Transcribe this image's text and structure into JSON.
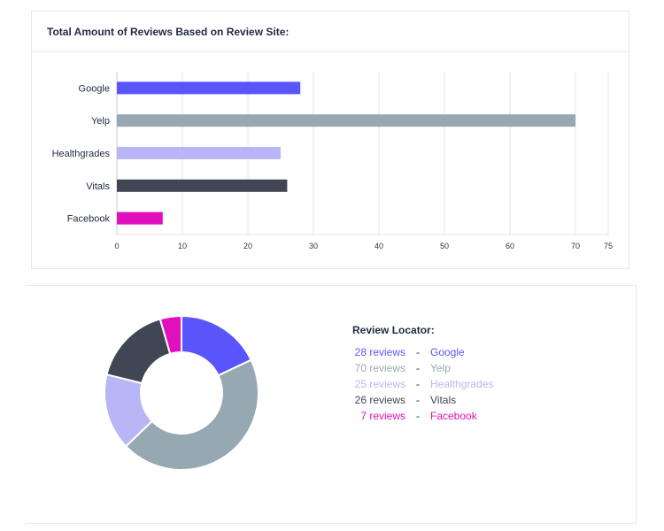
{
  "bar_card": {
    "title": "Total Amount of Reviews Based on Review Site:"
  },
  "legend": {
    "title": "Review  Locator:",
    "dash": "-",
    "items": [
      {
        "count_text": "28 reviews",
        "site": "Google",
        "color": "#5a55fb"
      },
      {
        "count_text": "70 reviews",
        "site": "Yelp",
        "color": "#96a9b2"
      },
      {
        "count_text": "25 reviews",
        "site": "Healthgrades",
        "color": "#b9b6f7"
      },
      {
        "count_text": "26 reviews",
        "site": "Vitals",
        "color": "#414654"
      },
      {
        "count_text": "7 reviews",
        "site": "Facebook",
        "color": "#e010be"
      }
    ]
  },
  "chart_data": [
    {
      "type": "bar",
      "orientation": "horizontal",
      "title": "Total Amount of Reviews Based on Review Site:",
      "categories": [
        "Google",
        "Yelp",
        "Healthgrades",
        "Vitals",
        "Facebook"
      ],
      "values": [
        28,
        70,
        25,
        26,
        7
      ],
      "colors": [
        "#5a55fb",
        "#96a9b2",
        "#b9b6f7",
        "#414654",
        "#e010be"
      ],
      "xticks": [
        0,
        10,
        20,
        30,
        40,
        50,
        60,
        70,
        75
      ],
      "xlim": [
        0,
        75
      ],
      "grid": true
    },
    {
      "type": "pie",
      "donut": true,
      "categories": [
        "Google",
        "Yelp",
        "Healthgrades",
        "Vitals",
        "Facebook"
      ],
      "values": [
        28,
        70,
        25,
        26,
        7
      ],
      "colors": [
        "#5a55fb",
        "#96a9b2",
        "#b9b6f7",
        "#414654",
        "#e010be"
      ]
    }
  ]
}
